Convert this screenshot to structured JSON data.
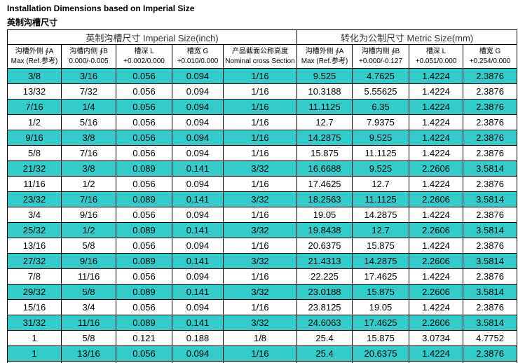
{
  "header": {
    "title": "Installation Dimensions based on Imperial Size",
    "subtitle": "英制沟槽尺寸"
  },
  "table": {
    "group_headers": [
      "英制沟槽尺寸 Imperial Size(inch)",
      "转化为公制尺寸 Metric Size(mm)"
    ],
    "column_headers": [
      [
        "沟槽外侧 ∮A",
        "Max (Ref.参考)"
      ],
      [
        "沟槽内侧 ∮B",
        "0.000/-0.005"
      ],
      [
        "槽深 L",
        "+0.002/0.000"
      ],
      [
        "槽宽 G",
        "+0.010/0.000"
      ],
      [
        "产品截面公称高度",
        "Nominal cross Section"
      ],
      [
        "沟槽外侧 ∮A",
        "Max (Ref.参考)"
      ],
      [
        "沟槽内侧 ∮B",
        "+0.000/-0.127"
      ],
      [
        "槽深 L",
        "+0.051/0.000"
      ],
      [
        "槽宽 G",
        "+0.254/0.000"
      ]
    ],
    "rows": [
      [
        "3/8",
        "3/16",
        "0.056",
        "0.094",
        "1/16",
        "9.525",
        "4.7625",
        "1.4224",
        "2.3876"
      ],
      [
        "13/32",
        "7/32",
        "0.056",
        "0.094",
        "1/16",
        "10.3188",
        "5.55625",
        "1.4224",
        "2.3876"
      ],
      [
        "7/16",
        "1/4",
        "0.056",
        "0.094",
        "1/16",
        "11.1125",
        "6.35",
        "1.4224",
        "2.3876"
      ],
      [
        "1/2",
        "5/16",
        "0.056",
        "0.094",
        "1/16",
        "12.7",
        "7.9375",
        "1.4224",
        "2.3876"
      ],
      [
        "9/16",
        "3/8",
        "0.056",
        "0.094",
        "1/16",
        "14.2875",
        "9.525",
        "1.4224",
        "2.3876"
      ],
      [
        "5/8",
        "7/16",
        "0.056",
        "0.094",
        "1/16",
        "15.875",
        "11.1125",
        "1.4224",
        "2.3876"
      ],
      [
        "21/32",
        "3/8",
        "0.089",
        "0.141",
        "3/32",
        "16.6688",
        "9.525",
        "2.2606",
        "3.5814"
      ],
      [
        "11/16",
        "1/2",
        "0.056",
        "0.094",
        "1/16",
        "17.4625",
        "12.7",
        "1.4224",
        "2.3876"
      ],
      [
        "23/32",
        "7/16",
        "0.089",
        "0.141",
        "3/32",
        "18.2563",
        "11.1125",
        "2.2606",
        "3.5814"
      ],
      [
        "3/4",
        "9/16",
        "0.056",
        "0.094",
        "1/16",
        "19.05",
        "14.2875",
        "1.4224",
        "2.3876"
      ],
      [
        "25/32",
        "1/2",
        "0.089",
        "0.141",
        "3/32",
        "19.8438",
        "12.7",
        "2.2606",
        "3.5814"
      ],
      [
        "13/16",
        "5/8",
        "0.056",
        "0.094",
        "1/16",
        "20.6375",
        "15.875",
        "1.4224",
        "2.3876"
      ],
      [
        "27/32",
        "9/16",
        "0.089",
        "0.141",
        "3/32",
        "21.4313",
        "14.2875",
        "2.2606",
        "3.5814"
      ],
      [
        "7/8",
        "11/16",
        "0.056",
        "0.094",
        "1/16",
        "22.225",
        "17.4625",
        "1.4224",
        "2.3876"
      ],
      [
        "29/32",
        "5/8",
        "0.089",
        "0.141",
        "3/32",
        "23.0188",
        "15.875",
        "2.2606",
        "3.5814"
      ],
      [
        "15/16",
        "3/4",
        "0.056",
        "0.094",
        "1/16",
        "23.8125",
        "19.05",
        "1.4224",
        "2.3876"
      ],
      [
        "31/32",
        "11/16",
        "0.089",
        "0.141",
        "3/32",
        "24.6063",
        "17.4625",
        "2.2606",
        "3.5814"
      ],
      [
        "1",
        "5/8",
        "0.121",
        "0.188",
        "1/8",
        "25.4",
        "15.875",
        "3.0734",
        "4.7752"
      ],
      [
        "1",
        "13/16",
        "0.056",
        "0.094",
        "1/16",
        "25.4",
        "20.6375",
        "1.4224",
        "2.3876"
      ]
    ]
  }
}
